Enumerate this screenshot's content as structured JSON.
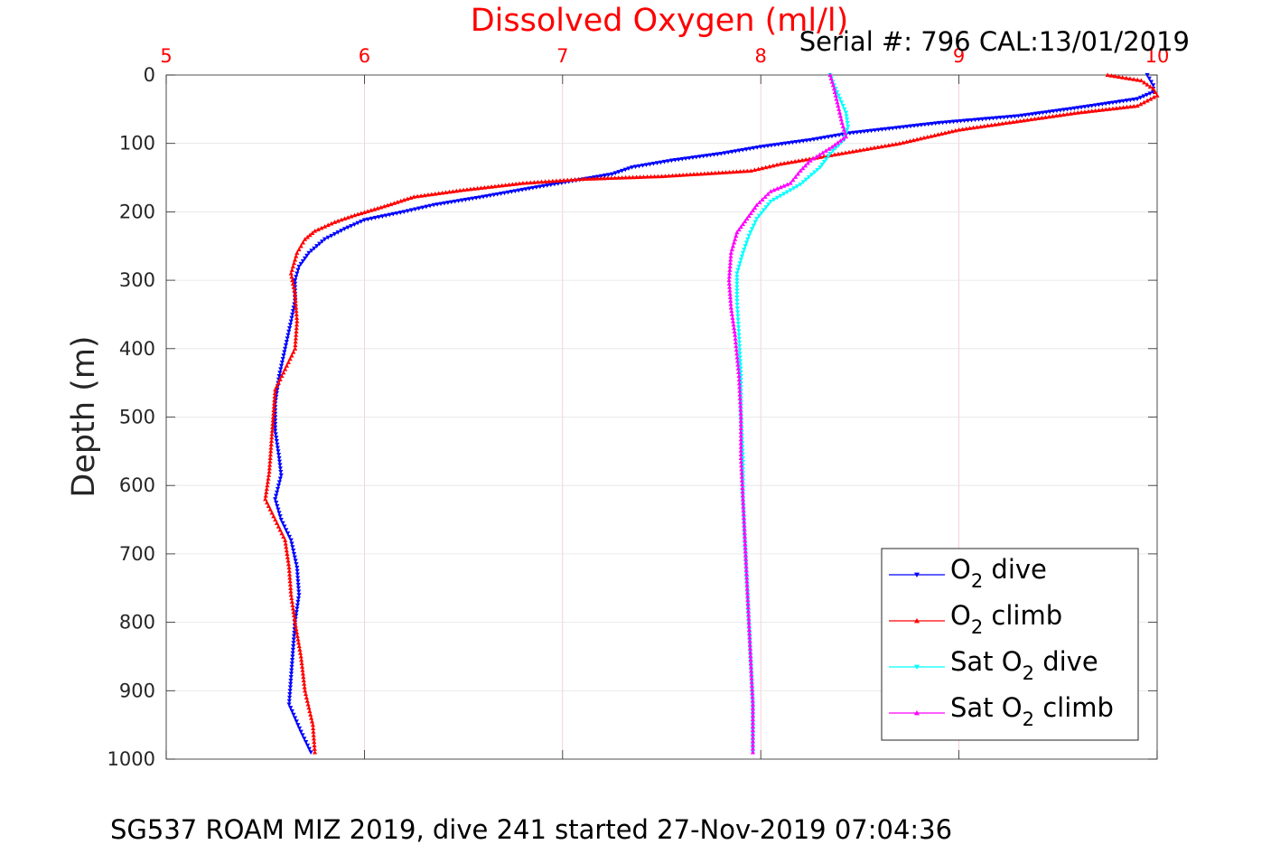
{
  "chart_data": {
    "type": "scatter",
    "title": "Dissolved Oxygen (ml/l)",
    "serial_label": "Serial #: 796  CAL:13/01/2019",
    "footer": "SG537 ROAM MIZ 2019, dive 241 started 27-Nov-2019 07:04:36",
    "ylabel": "Depth (m)",
    "xlim": [
      5,
      10
    ],
    "ylim": [
      0,
      1000
    ],
    "y_reversed": true,
    "x_axis_position": "top",
    "x_ticks": [
      "5",
      "6",
      "7",
      "8",
      "9",
      "10"
    ],
    "y_ticks": [
      "0",
      "100",
      "200",
      "300",
      "400",
      "500",
      "600",
      "700",
      "800",
      "900",
      "1000"
    ],
    "grid": true,
    "legend_position": "bottom-right",
    "colors": {
      "title": "#ff0000",
      "x_ticks": "#ff0000",
      "grid": "#f2c6cc",
      "text": "#262626"
    },
    "series": [
      {
        "name": "O2 dive",
        "legend": {
          "pre": "O",
          "sub": "2",
          "post": " dive"
        },
        "color": "#0000ff",
        "marker": "triangle-down",
        "points": [
          [
            9.95,
            0
          ],
          [
            9.98,
            15
          ],
          [
            9.98,
            25
          ],
          [
            9.9,
            35
          ],
          [
            9.6,
            48
          ],
          [
            9.3,
            60
          ],
          [
            8.9,
            70
          ],
          [
            8.45,
            85
          ],
          [
            8.25,
            95
          ],
          [
            8.0,
            105
          ],
          [
            7.8,
            115
          ],
          [
            7.55,
            125
          ],
          [
            7.35,
            135
          ],
          [
            7.3,
            140
          ],
          [
            7.25,
            145
          ],
          [
            7.05,
            155
          ],
          [
            6.85,
            165
          ],
          [
            6.6,
            178
          ],
          [
            6.35,
            190
          ],
          [
            6.2,
            200
          ],
          [
            6.0,
            212
          ],
          [
            5.9,
            225
          ],
          [
            5.8,
            240
          ],
          [
            5.72,
            260
          ],
          [
            5.67,
            280
          ],
          [
            5.65,
            300
          ],
          [
            5.65,
            330
          ],
          [
            5.63,
            360
          ],
          [
            5.6,
            400
          ],
          [
            5.57,
            440
          ],
          [
            5.55,
            480
          ],
          [
            5.55,
            520
          ],
          [
            5.57,
            560
          ],
          [
            5.58,
            585
          ],
          [
            5.55,
            620
          ],
          [
            5.58,
            650
          ],
          [
            5.63,
            680
          ],
          [
            5.66,
            720
          ],
          [
            5.67,
            760
          ],
          [
            5.65,
            800
          ],
          [
            5.64,
            840
          ],
          [
            5.63,
            880
          ],
          [
            5.62,
            920
          ],
          [
            5.68,
            960
          ],
          [
            5.73,
            990
          ]
        ]
      },
      {
        "name": "O2 climb",
        "legend": {
          "pre": "O",
          "sub": "2",
          "post": " climb"
        },
        "color": "#ff0000",
        "marker": "triangle-up",
        "points": [
          [
            9.75,
            0
          ],
          [
            9.92,
            8
          ],
          [
            9.98,
            20
          ],
          [
            10.0,
            30
          ],
          [
            9.9,
            45
          ],
          [
            9.6,
            55
          ],
          [
            9.0,
            80
          ],
          [
            8.7,
            100
          ],
          [
            8.5,
            110
          ],
          [
            8.3,
            120
          ],
          [
            8.1,
            130
          ],
          [
            7.95,
            140
          ],
          [
            7.5,
            148
          ],
          [
            7.1,
            152
          ],
          [
            6.8,
            158
          ],
          [
            6.5,
            168
          ],
          [
            6.25,
            178
          ],
          [
            6.1,
            192
          ],
          [
            5.95,
            205
          ],
          [
            5.85,
            215
          ],
          [
            5.75,
            228
          ],
          [
            5.7,
            240
          ],
          [
            5.66,
            260
          ],
          [
            5.63,
            290
          ],
          [
            5.65,
            320
          ],
          [
            5.66,
            360
          ],
          [
            5.65,
            400
          ],
          [
            5.6,
            430
          ],
          [
            5.55,
            460
          ],
          [
            5.54,
            500
          ],
          [
            5.53,
            540
          ],
          [
            5.52,
            580
          ],
          [
            5.5,
            620
          ],
          [
            5.55,
            650
          ],
          [
            5.6,
            680
          ],
          [
            5.62,
            720
          ],
          [
            5.63,
            760
          ],
          [
            5.65,
            800
          ],
          [
            5.68,
            850
          ],
          [
            5.7,
            900
          ],
          [
            5.74,
            950
          ],
          [
            5.75,
            990
          ]
        ]
      },
      {
        "name": "Sat O2 dive",
        "legend": {
          "pre": "Sat O",
          "sub": "2",
          "post": " dive"
        },
        "color": "#00ffff",
        "marker": "triangle-down",
        "points": [
          [
            8.35,
            0
          ],
          [
            8.37,
            15
          ],
          [
            8.4,
            35
          ],
          [
            8.43,
            55
          ],
          [
            8.44,
            75
          ],
          [
            8.42,
            95
          ],
          [
            8.35,
            115
          ],
          [
            8.3,
            135
          ],
          [
            8.2,
            160
          ],
          [
            8.05,
            185
          ],
          [
            7.98,
            210
          ],
          [
            7.94,
            235
          ],
          [
            7.91,
            260
          ],
          [
            7.88,
            290
          ],
          [
            7.88,
            330
          ],
          [
            7.89,
            380
          ],
          [
            7.9,
            440
          ],
          [
            7.9,
            500
          ],
          [
            7.91,
            560
          ],
          [
            7.91,
            620
          ],
          [
            7.92,
            680
          ],
          [
            7.93,
            740
          ],
          [
            7.94,
            800
          ],
          [
            7.95,
            860
          ],
          [
            7.96,
            920
          ],
          [
            7.96,
            990
          ]
        ]
      },
      {
        "name": "Sat O2 climb",
        "legend": {
          "pre": "Sat O",
          "sub": "2",
          "post": " climb"
        },
        "color": "#ff00ff",
        "marker": "triangle-up",
        "points": [
          [
            8.35,
            0
          ],
          [
            8.37,
            20
          ],
          [
            8.39,
            45
          ],
          [
            8.41,
            70
          ],
          [
            8.43,
            90
          ],
          [
            8.36,
            105
          ],
          [
            8.25,
            125
          ],
          [
            8.2,
            140
          ],
          [
            8.15,
            158
          ],
          [
            8.05,
            170
          ],
          [
            7.98,
            190
          ],
          [
            7.93,
            210
          ],
          [
            7.88,
            230
          ],
          [
            7.85,
            260
          ],
          [
            7.84,
            300
          ],
          [
            7.85,
            340
          ],
          [
            7.87,
            380
          ],
          [
            7.89,
            440
          ],
          [
            7.9,
            500
          ],
          [
            7.9,
            560
          ],
          [
            7.91,
            620
          ],
          [
            7.92,
            680
          ],
          [
            7.93,
            740
          ],
          [
            7.94,
            800
          ],
          [
            7.95,
            860
          ],
          [
            7.96,
            920
          ],
          [
            7.96,
            990
          ]
        ]
      }
    ]
  }
}
